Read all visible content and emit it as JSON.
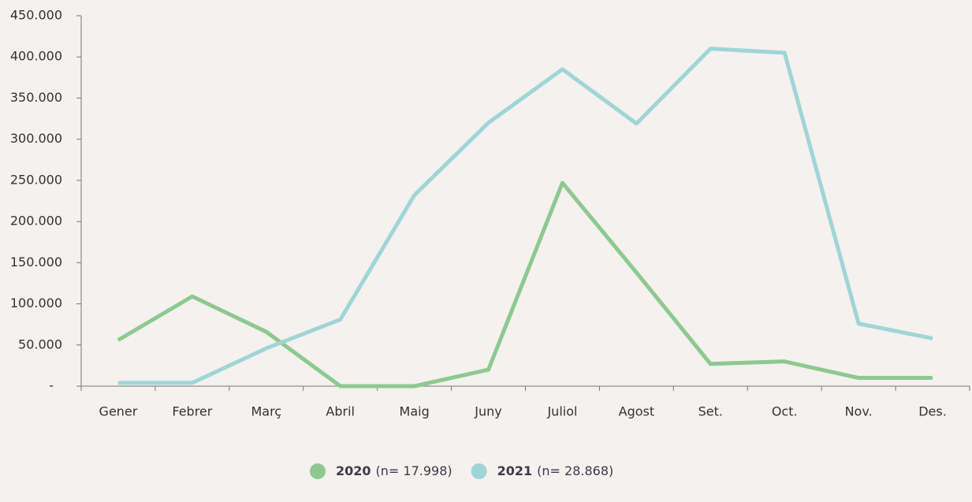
{
  "chart_data": {
    "type": "line",
    "categories": [
      "Gener",
      "Febrer",
      "Març",
      "Abril",
      "Maig",
      "Juny",
      "Juliol",
      "Agost",
      "Set.",
      "Oct.",
      "Nov.",
      "Des."
    ],
    "series": [
      {
        "name": "2020",
        "note": "(n= 17.998)",
        "color": "#8dc98f",
        "values": [
          56000,
          109000,
          66000,
          0,
          0,
          20000,
          247000,
          138000,
          27000,
          30000,
          10000,
          10000
        ]
      },
      {
        "name": "2021",
        "note": "(n= 28.868)",
        "color": "#9fd5d7",
        "values": [
          4000,
          4000,
          46000,
          81000,
          232000,
          320000,
          385000,
          319000,
          410000,
          405000,
          76000,
          58000
        ]
      }
    ],
    "ylim": [
      0,
      450000
    ],
    "yticks": [
      {
        "value": 0,
        "label": "-"
      },
      {
        "value": 50000,
        "label": "50.000"
      },
      {
        "value": 100000,
        "label": "100.000"
      },
      {
        "value": 150000,
        "label": "150.000"
      },
      {
        "value": 200000,
        "label": "200.000"
      },
      {
        "value": 250000,
        "label": "250.000"
      },
      {
        "value": 300000,
        "label": "300.000"
      },
      {
        "value": 350000,
        "label": "350.000"
      },
      {
        "value": 400000,
        "label": "400.000"
      },
      {
        "value": 450000,
        "label": "450.000"
      }
    ],
    "grid": false,
    "legend": "bottom"
  }
}
